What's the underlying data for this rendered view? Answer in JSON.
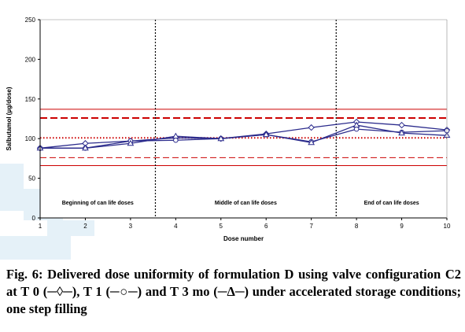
{
  "figure": {
    "caption": "Fig. 6: Delivered dose uniformity of formulation D using valve configuration C2 at T 0 (─◊─), T 1 (─○─) and T 3 mo (─Δ─) under accelerated storage conditions; one step filling"
  },
  "chart_data": {
    "type": "line",
    "xlabel": "Dose number",
    "ylabel": "Salbutamol (µg/dose)",
    "xlim": [
      1,
      10
    ],
    "ylim": [
      0,
      250
    ],
    "x_ticks": [
      "1",
      "2",
      "3",
      "4",
      "5",
      "6",
      "7",
      "8",
      "9",
      "10"
    ],
    "y_ticks": [
      "0",
      "50",
      "100",
      "150",
      "200",
      "250"
    ],
    "x": [
      1,
      2,
      3,
      4,
      5,
      6,
      7,
      8,
      9,
      10
    ],
    "series": [
      {
        "name": "T 0",
        "marker": "diamond",
        "values": [
          88,
          94,
          97,
          101,
          100,
          106,
          114,
          121,
          117,
          111
        ]
      },
      {
        "name": "T 1",
        "marker": "circle",
        "values": [
          88,
          88,
          97,
          98,
          100,
          105,
          96,
          112,
          108,
          110
        ]
      },
      {
        "name": "T 3 mo",
        "marker": "triangle",
        "values": [
          88,
          88,
          94,
          103,
          100,
          105,
          95,
          117,
          107,
          104
        ]
      }
    ],
    "reference_lines": [
      {
        "y": 137,
        "style": "solid"
      },
      {
        "y": 126,
        "style": "dashed-bold"
      },
      {
        "y": 101,
        "style": "dotted"
      },
      {
        "y": 76,
        "style": "dashed-thin"
      },
      {
        "y": 66,
        "style": "solid"
      }
    ],
    "region_dividers": [
      3.55,
      7.55
    ],
    "regions": [
      "Beginning of can life doses",
      "Middle of can life doses",
      "End of can life doses"
    ],
    "grid": false,
    "legend": "none",
    "colors": {
      "series": "#2b2b8c",
      "reference": "#cc0000",
      "divider": "#000000"
    }
  }
}
